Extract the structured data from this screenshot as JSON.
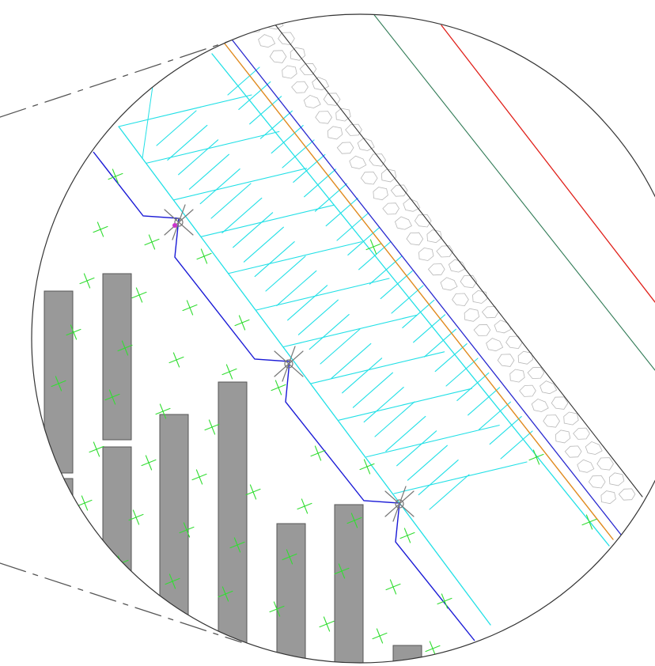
{
  "drawing": {
    "kind": "cad-detail-callout",
    "colors": {
      "background": "#ffffff",
      "outline": "#333333",
      "callout_line": "#555555",
      "parcel_boundary": "#1a1ad6",
      "curb_line": "#22e0e6",
      "hatch": "#22e0e6",
      "orange_line": "#e08a1e",
      "blue_line": "#2a2ad0",
      "paver_edge": "#b8b8b8",
      "dark_green_line": "#2f7a55",
      "red_line": "#e0201a",
      "planting_mark": "#33dd33",
      "building_fill": "#999999",
      "building_edge": "#555555",
      "survey_mark": "#777777",
      "survey_dot": "#cc33cc"
    },
    "survey_marks": 3,
    "buildings": 9,
    "planting_marks": 40
  }
}
